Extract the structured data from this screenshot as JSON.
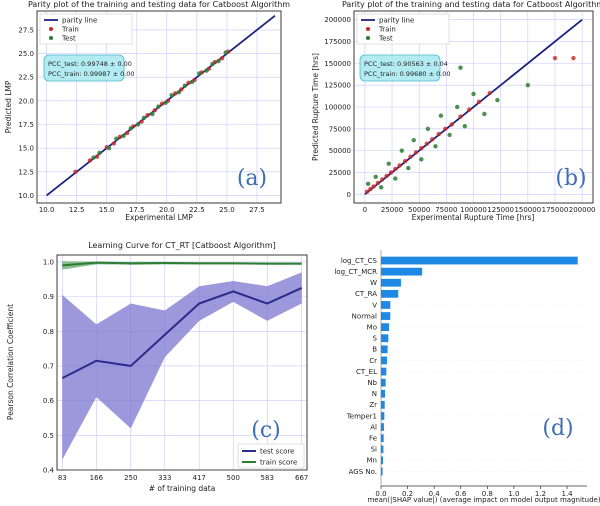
{
  "chart_data": [
    {
      "type": "scatter",
      "title": "Parity plot of the training and testing data for Catboost Algorithm",
      "xlabel": "Experimental LMP",
      "ylabel": "Predicted LMP",
      "xlim": [
        9.2,
        29.5
      ],
      "ylim": [
        9.2,
        29.5
      ],
      "xticks": [
        "10.0",
        "12.5",
        "15.0",
        "17.5",
        "20.0",
        "22.5",
        "25.0",
        "27.5"
      ],
      "yticks": [
        "10.0",
        "12.5",
        "15.0",
        "17.5",
        "20.0",
        "22.5",
        "25.0",
        "27.5"
      ],
      "legend": [
        "parity line",
        "Train",
        "Test"
      ],
      "pcc_test": "PCC_test: 0.99748 ± 0.00",
      "pcc_train": "PCC_train: 0.99987 ± 0.00",
      "panel_label": "(a)",
      "parity": [
        10,
        29
      ],
      "train": [
        [
          12.4,
          12.5
        ],
        [
          13.6,
          13.7
        ],
        [
          14.2,
          14.1
        ],
        [
          15.0,
          15.1
        ],
        [
          15.6,
          15.5
        ],
        [
          16.1,
          16.2
        ],
        [
          16.7,
          16.6
        ],
        [
          17.2,
          17.3
        ],
        [
          17.9,
          17.8
        ],
        [
          18.4,
          18.5
        ],
        [
          19.0,
          19.0
        ],
        [
          19.6,
          19.7
        ],
        [
          20.1,
          20.0
        ],
        [
          20.7,
          20.8
        ],
        [
          21.2,
          21.2
        ],
        [
          21.8,
          21.9
        ],
        [
          22.3,
          22.2
        ],
        [
          22.9,
          23.0
        ],
        [
          23.5,
          23.4
        ],
        [
          24.0,
          24.1
        ],
        [
          24.6,
          24.5
        ],
        [
          25.1,
          25.2
        ]
      ],
      "test": [
        [
          13.9,
          14.0
        ],
        [
          14.4,
          14.5
        ],
        [
          15.2,
          15.0
        ],
        [
          15.8,
          16.0
        ],
        [
          16.4,
          16.3
        ],
        [
          17.0,
          17.1
        ],
        [
          17.6,
          17.5
        ],
        [
          18.1,
          18.2
        ],
        [
          18.8,
          18.6
        ],
        [
          19.3,
          19.4
        ],
        [
          19.9,
          19.8
        ],
        [
          20.4,
          20.6
        ],
        [
          21.0,
          20.9
        ],
        [
          21.5,
          21.6
        ],
        [
          22.1,
          22.0
        ],
        [
          22.7,
          22.9
        ],
        [
          23.3,
          23.2
        ],
        [
          23.8,
          23.9
        ],
        [
          24.3,
          24.2
        ],
        [
          24.9,
          25.1
        ]
      ]
    },
    {
      "type": "scatter",
      "title": "Parity plot of the training and testing data for Catboost Algorithm",
      "xlabel": "Experimental Rupture Time [hrs]",
      "ylabel": "Predicted Rupture Time [hrs]",
      "xlim": [
        -10000,
        210000
      ],
      "ylim": [
        -10000,
        210000
      ],
      "xticks": [
        "0",
        "25000",
        "50000",
        "75000",
        "100000",
        "125000",
        "150000",
        "175000",
        "200000"
      ],
      "yticks": [
        "0",
        "25000",
        "50000",
        "75000",
        "100000",
        "125000",
        "150000",
        "175000",
        "200000"
      ],
      "legend": [
        "parity line",
        "Train",
        "Test"
      ],
      "pcc_test": "PCC_test: 0.90563 ± 0.04",
      "pcc_train": "PCC_train: 0.99680 ± 0.00",
      "panel_label": "(b)",
      "parity": [
        0,
        200000
      ],
      "train": [
        [
          2000,
          3000
        ],
        [
          5000,
          6000
        ],
        [
          8000,
          9000
        ],
        [
          12000,
          13000
        ],
        [
          16000,
          17000
        ],
        [
          20000,
          21000
        ],
        [
          24000,
          25000
        ],
        [
          28000,
          29000
        ],
        [
          32000,
          33000
        ],
        [
          37000,
          38000
        ],
        [
          42000,
          43000
        ],
        [
          47000,
          48000
        ],
        [
          52000,
          53000
        ],
        [
          57000,
          58000
        ],
        [
          62000,
          63000
        ],
        [
          68000,
          69000
        ],
        [
          74000,
          75000
        ],
        [
          80000,
          80000
        ],
        [
          88000,
          89000
        ],
        [
          96000,
          97000
        ],
        [
          105000,
          106000
        ],
        [
          115000,
          116000
        ],
        [
          175000,
          156000
        ],
        [
          192000,
          156000
        ]
      ],
      "test": [
        [
          3000,
          12000
        ],
        [
          10000,
          20000
        ],
        [
          15000,
          8000
        ],
        [
          22000,
          35000
        ],
        [
          28000,
          18000
        ],
        [
          34000,
          50000
        ],
        [
          40000,
          30000
        ],
        [
          45000,
          62000
        ],
        [
          52000,
          40000
        ],
        [
          58000,
          75000
        ],
        [
          65000,
          55000
        ],
        [
          70000,
          90000
        ],
        [
          78000,
          68000
        ],
        [
          85000,
          100000
        ],
        [
          88000,
          145000
        ],
        [
          92000,
          78000
        ],
        [
          100000,
          115000
        ],
        [
          110000,
          92000
        ],
        [
          122000,
          108000
        ],
        [
          150000,
          125000
        ]
      ]
    },
    {
      "type": "line",
      "title": "Learning Curve for CT_RT [Catboost Algorithm]",
      "xlabel": "# of training data",
      "ylabel": "Pearson Correlation Coefficient",
      "xlim": [
        70,
        680
      ],
      "ylim": [
        0.4,
        1.02
      ],
      "x": [
        83,
        166,
        250,
        333,
        417,
        500,
        583,
        667
      ],
      "xticks": [
        "83",
        "166",
        "250",
        "333",
        "417",
        "500",
        "583",
        "667"
      ],
      "yticks": [
        "0.4",
        "0.5",
        "0.6",
        "0.7",
        "0.8",
        "0.9",
        "1.0"
      ],
      "panel_label": "(c)",
      "series": [
        {
          "name": "test score",
          "color": "#2b2b8c",
          "values": [
            0.665,
            0.715,
            0.7,
            0.79,
            0.88,
            0.915,
            0.88,
            0.925
          ],
          "upper": [
            0.905,
            0.82,
            0.88,
            0.86,
            0.93,
            0.945,
            0.93,
            0.97
          ],
          "lower": [
            0.43,
            0.61,
            0.52,
            0.725,
            0.83,
            0.885,
            0.83,
            0.88
          ]
        },
        {
          "name": "train score",
          "color": "#2e7d32",
          "values": [
            0.99,
            0.998,
            0.996,
            0.997,
            0.996,
            0.996,
            0.995,
            0.995
          ],
          "upper": [
            1.002,
            1.001,
            1.0,
            1.0,
            0.999,
            0.999,
            0.998,
            0.998
          ],
          "lower": [
            0.978,
            0.993,
            0.992,
            0.993,
            0.993,
            0.993,
            0.992,
            0.992
          ]
        }
      ]
    },
    {
      "type": "bar",
      "orientation": "horizontal",
      "xlabel": "mean(|SHAP value|) (average impact on model output magnitude)",
      "xlim": [
        0,
        1.55
      ],
      "xticks": [
        "0.0",
        "0.2",
        "0.4",
        "0.6",
        "0.8",
        "1.0",
        "1.2",
        "1.4"
      ],
      "panel_label": "(d)",
      "color": "#1e88e5",
      "categories": [
        "log_CT_CS",
        "log_CT_MCR",
        "W",
        "CT_RA",
        "V",
        "Normal",
        "Mo",
        "S",
        "B",
        "Cr",
        "CT_EL",
        "Nb",
        "N",
        "Zr",
        "Temper1",
        "Al",
        "Fe",
        "Si",
        "Mn",
        "AGS No."
      ],
      "values": [
        1.48,
        0.31,
        0.15,
        0.13,
        0.07,
        0.07,
        0.06,
        0.055,
        0.05,
        0.045,
        0.04,
        0.035,
        0.03,
        0.028,
        0.025,
        0.022,
        0.02,
        0.018,
        0.015,
        0.012
      ]
    }
  ]
}
